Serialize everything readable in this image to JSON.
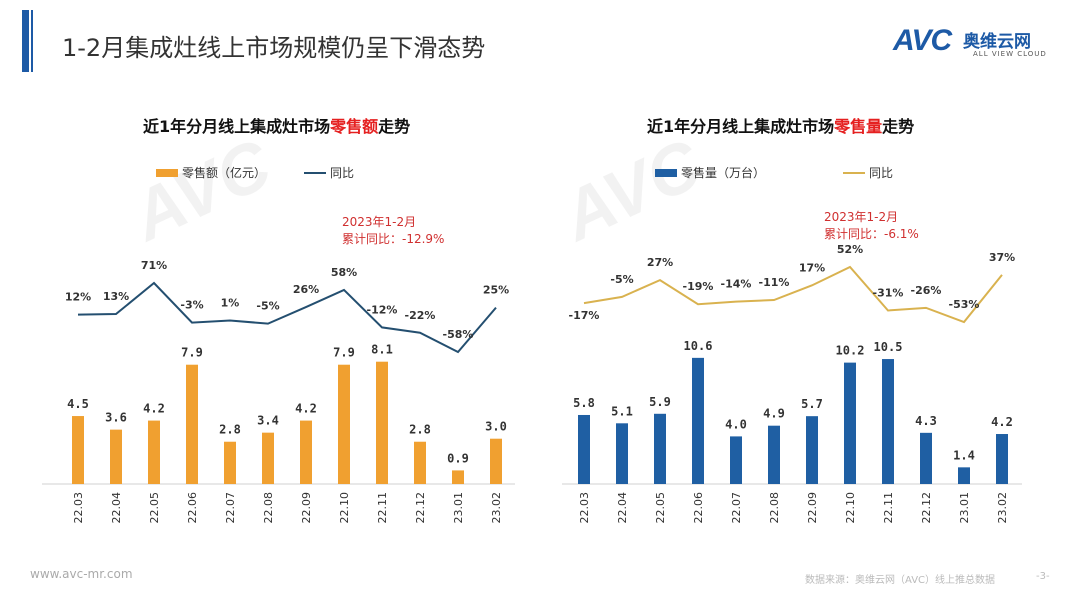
{
  "header": {
    "title": "1-2月集成灶线上市场规模仍呈下滑态势",
    "logo": {
      "mark": "AVC",
      "cn": "奥维云网",
      "en": "ALL VIEW CLOUD"
    }
  },
  "watermark": "AVC 奥维云网 ALL VIEW CLOUD",
  "footer": {
    "url": "www.avc-mr.com",
    "source": "数据来源：奥维云网（AVC）线上推总数据",
    "page": "-3-"
  },
  "colors": {
    "accent": "#1d5aa6",
    "orange": "#f0a030",
    "blue": "#1f5fa3",
    "navy_line": "#244f70",
    "gold_line": "#d9b24f",
    "highlight": "#e52020"
  },
  "chart_data": [
    {
      "type": "bar+line",
      "title_parts": [
        "近1年分月线上集成灶市场",
        "零售额",
        "走势"
      ],
      "categories": [
        "22.03",
        "22.04",
        "22.05",
        "22.06",
        "22.07",
        "22.08",
        "22.09",
        "22.10",
        "22.11",
        "22.12",
        "23.01",
        "23.02"
      ],
      "series": [
        {
          "name": "零售额（亿元）",
          "type": "bar",
          "color": "#f0a030",
          "values": [
            4.5,
            3.6,
            4.2,
            7.9,
            2.8,
            3.4,
            4.2,
            7.9,
            8.1,
            2.8,
            0.9,
            3.0
          ],
          "labels": [
            "4.5",
            "3.6",
            "4.2",
            "7.9",
            "2.8",
            "3.4",
            "4.2",
            "7.9",
            "8.1",
            "2.8",
            "0.9",
            "3.0"
          ]
        },
        {
          "name": "同比",
          "type": "line",
          "color": "#244f70",
          "values": [
            12,
            13,
            71,
            -3,
            1,
            -5,
            26,
            58,
            -12,
            -22,
            -58,
            25
          ],
          "labels": [
            "12%",
            "13%",
            "71%",
            "-3%",
            "1%",
            "-5%",
            "26%",
            "58%",
            "-12%",
            "-22%",
            "-58%",
            "25%"
          ]
        }
      ],
      "annotation": "2023年1-2月\n累计同比：-12.9%"
    },
    {
      "type": "bar+line",
      "title_parts": [
        "近1年分月线上集成灶市场",
        "零售量",
        "走势"
      ],
      "categories": [
        "22.03",
        "22.04",
        "22.05",
        "22.06",
        "22.07",
        "22.08",
        "22.09",
        "22.10",
        "22.11",
        "22.12",
        "23.01",
        "23.02"
      ],
      "series": [
        {
          "name": "零售量（万台）",
          "type": "bar",
          "color": "#1f5fa3",
          "values": [
            5.8,
            5.1,
            5.9,
            10.6,
            4.0,
            4.9,
            5.7,
            10.2,
            10.5,
            4.3,
            1.4,
            4.2
          ],
          "labels": [
            "5.8",
            "5.1",
            "5.9",
            "10.6",
            "4.0",
            "4.9",
            "5.7",
            "10.2",
            "10.5",
            "4.3",
            "1.4",
            "4.2"
          ]
        },
        {
          "name": "同比",
          "type": "line",
          "color": "#d9b24f",
          "values": [
            -17,
            -5,
            27,
            -19,
            -14,
            -11,
            17,
            52,
            -31,
            -26,
            -53,
            37
          ],
          "labels": [
            "-17%",
            "-5%",
            "27%",
            "-19%",
            "-14%",
            "-11%",
            "17%",
            "52%",
            "-31%",
            "-26%",
            "-53%",
            "37%"
          ]
        }
      ],
      "annotation": "2023年1-2月\n累计同比：-6.1%"
    }
  ]
}
